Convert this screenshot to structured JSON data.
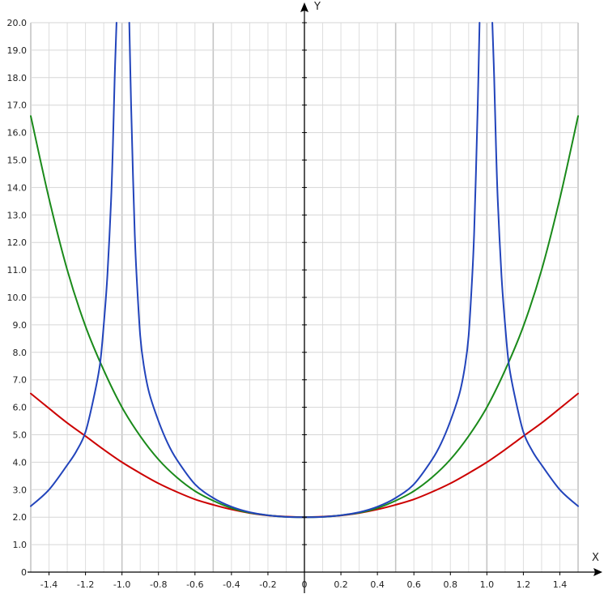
{
  "chart_data": {
    "type": "line",
    "xlabel": "X",
    "ylabel": "Y",
    "xlim": [
      -1.5,
      1.5
    ],
    "ylim": [
      0,
      20
    ],
    "grid": true,
    "x_ticks": [
      -1.4,
      -1.2,
      -1.0,
      -0.8,
      -0.6,
      -0.4,
      -0.2,
      0,
      0.2,
      0.4,
      0.6,
      0.8,
      1.0,
      1.2,
      1.4
    ],
    "x_tick_labels": [
      "-1.4",
      "-1.2",
      "-1.0",
      "-0.8",
      "-0.6",
      "-0.4",
      "-0.2",
      "0",
      "0.2",
      "0.4",
      "0.6",
      "0.8",
      "1.0",
      "1.2",
      "1.4"
    ],
    "y_ticks": [
      0,
      1,
      2,
      3,
      4,
      5,
      6,
      7,
      8,
      9,
      10,
      11,
      12,
      13,
      14,
      15,
      16,
      17,
      18,
      19,
      20
    ],
    "y_tick_labels": [
      "0",
      "1.0",
      "2.0",
      "3.0",
      "4.0",
      "5.0",
      "6.0",
      "7.0",
      "8.0",
      "9.0",
      "10.0",
      "11.0",
      "12.0",
      "13.0",
      "14.0",
      "15.0",
      "16.0",
      "17.0",
      "18.0",
      "19.0",
      "20.0"
    ],
    "series": [
      {
        "color": "#cc0000",
        "x": [
          -1.5,
          -1.4,
          -1.3,
          -1.2,
          -1.1,
          -1.0,
          -0.9,
          -0.8,
          -0.7,
          -0.6,
          -0.5,
          -0.4,
          -0.3,
          -0.2,
          -0.1,
          0,
          0.1,
          0.2,
          0.3,
          0.4,
          0.5,
          0.6,
          0.7,
          0.8,
          0.9,
          1.0,
          1.1,
          1.2,
          1.3,
          1.4,
          1.5
        ],
        "y": [
          6.5,
          5.96,
          5.43,
          4.95,
          4.46,
          4.0,
          3.6,
          3.23,
          2.92,
          2.65,
          2.45,
          2.28,
          2.15,
          2.06,
          2.02,
          2.0,
          2.02,
          2.06,
          2.15,
          2.28,
          2.45,
          2.65,
          2.92,
          3.23,
          3.6,
          4.0,
          4.46,
          4.95,
          5.43,
          5.96,
          6.5
        ]
      },
      {
        "color": "#1a8a1a",
        "x": [
          -1.5,
          -1.4,
          -1.3,
          -1.2,
          -1.1,
          -1.0,
          -0.9,
          -0.8,
          -0.7,
          -0.6,
          -0.5,
          -0.4,
          -0.3,
          -0.2,
          -0.1,
          0,
          0.1,
          0.2,
          0.3,
          0.4,
          0.5,
          0.6,
          0.7,
          0.8,
          0.9,
          1.0,
          1.1,
          1.2,
          1.3,
          1.4,
          1.5
        ],
        "y": [
          16.6,
          13.6,
          11.0,
          8.95,
          7.35,
          6.0,
          4.95,
          4.1,
          3.45,
          2.95,
          2.6,
          2.33,
          2.16,
          2.07,
          2.01,
          2.0,
          2.01,
          2.07,
          2.16,
          2.33,
          2.6,
          2.95,
          3.45,
          4.1,
          4.95,
          6.0,
          7.35,
          8.95,
          11.0,
          13.6,
          16.6
        ]
      },
      {
        "color": "#2244bb",
        "x": [
          -1.5,
          -1.4,
          -1.3,
          -1.25,
          -1.2,
          -1.15,
          -1.12,
          -1.1,
          -1.08,
          -1.06,
          -1.05,
          -1.04,
          -1.03
        ],
        "y": [
          2.4,
          3.0,
          3.9,
          4.4,
          5.1,
          6.5,
          7.6,
          9.0,
          10.8,
          13.5,
          15.5,
          18.0,
          20.0
        ]
      },
      {
        "color": "#2244bb",
        "x": [
          -0.96,
          -0.95,
          -0.94,
          -0.93,
          -0.92,
          -0.9,
          -0.88,
          -0.85,
          -0.8,
          -0.75,
          -0.7,
          -0.6,
          -0.5,
          -0.4,
          -0.3,
          -0.2,
          -0.1,
          0,
          0.1,
          0.2,
          0.3,
          0.4,
          0.5,
          0.6,
          0.7,
          0.75,
          0.8,
          0.85,
          0.88,
          0.9,
          0.92,
          0.93,
          0.94,
          0.95,
          0.96
        ],
        "y": [
          20.0,
          17.0,
          14.5,
          12.3,
          10.8,
          8.6,
          7.5,
          6.5,
          5.5,
          4.7,
          4.1,
          3.2,
          2.7,
          2.38,
          2.18,
          2.07,
          2.01,
          2.0,
          2.01,
          2.07,
          2.18,
          2.38,
          2.7,
          3.2,
          4.1,
          4.7,
          5.5,
          6.5,
          7.5,
          8.6,
          10.8,
          12.3,
          14.5,
          17.0,
          20.0
        ]
      },
      {
        "color": "#2244bb",
        "x": [
          1.03,
          1.04,
          1.05,
          1.06,
          1.08,
          1.1,
          1.12,
          1.15,
          1.2,
          1.25,
          1.3,
          1.4,
          1.5
        ],
        "y": [
          20.0,
          18.0,
          15.5,
          13.5,
          10.8,
          9.0,
          7.6,
          6.5,
          5.1,
          4.4,
          3.9,
          3.0,
          2.4
        ]
      }
    ]
  }
}
